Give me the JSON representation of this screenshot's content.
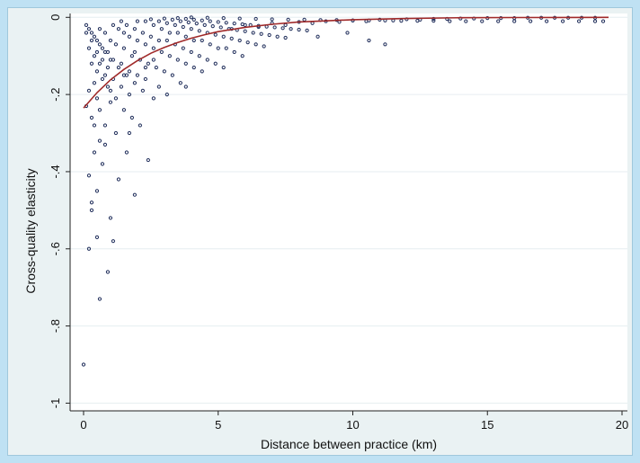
{
  "chart_data": {
    "type": "scatter",
    "title": "",
    "xlabel": "Distance between practice (km)",
    "ylabel": "Cross-quality elasticity",
    "xlim": [
      -0.5,
      20.2
    ],
    "ylim": [
      -1.02,
      0.01
    ],
    "x_ticks": [
      0,
      5,
      10,
      15,
      20
    ],
    "x_tick_labels": [
      "0",
      "5",
      "10",
      "15",
      "20"
    ],
    "y_ticks": [
      0,
      -0.2,
      -0.4,
      -0.6,
      -0.8,
      -1
    ],
    "y_tick_labels": [
      "0",
      "-.2",
      "-.4",
      "-.6",
      "-.8",
      "-1"
    ],
    "grid": "horizontal",
    "marker_color": "#1f2d5a",
    "fit_color": "#a02a2a",
    "series": [
      {
        "kind": "points",
        "x": [
          0.0,
          0.1,
          0.2,
          0.3,
          0.3,
          0.5,
          0.6,
          0.4,
          0.2,
          0.5,
          0.9,
          1.1,
          1.0,
          0.7,
          0.6,
          0.4,
          0.8,
          1.3,
          1.6,
          1.9,
          2.4,
          1.7,
          0.2,
          0.3,
          0.5,
          0.4,
          0.6,
          0.8,
          1.0,
          1.2,
          0.9,
          0.5,
          0.3,
          0.7,
          0.1,
          0.2,
          0.4,
          0.6,
          0.8,
          1.0,
          1.2,
          1.5,
          1.8,
          2.1,
          0.3,
          0.5,
          0.7,
          0.9,
          1.1,
          1.4,
          1.7,
          0.2,
          0.4,
          0.6,
          0.8,
          1.0,
          1.3,
          1.6,
          1.9,
          2.2,
          2.6,
          0.1,
          0.3,
          0.5,
          0.7,
          0.9,
          1.1,
          1.4,
          1.7,
          2.0,
          2.3,
          2.8,
          3.1,
          0.6,
          0.8,
          1.0,
          1.2,
          1.5,
          1.8,
          2.1,
          2.4,
          2.7,
          3.0,
          3.3,
          3.6,
          1.1,
          1.3,
          1.5,
          1.7,
          2.0,
          2.3,
          2.6,
          2.9,
          3.2,
          3.5,
          3.8,
          4.1,
          4.4,
          1.4,
          1.6,
          1.9,
          2.2,
          2.5,
          2.8,
          3.1,
          3.4,
          3.7,
          4.0,
          4.3,
          4.6,
          4.9,
          5.2,
          2.0,
          2.3,
          2.6,
          2.9,
          3.2,
          3.5,
          3.8,
          4.1,
          4.4,
          4.7,
          5.0,
          5.3,
          5.6,
          5.9,
          2.5,
          2.8,
          3.1,
          3.4,
          3.7,
          4.0,
          4.3,
          4.6,
          4.9,
          5.2,
          5.5,
          5.8,
          6.1,
          6.4,
          6.7,
          3.0,
          3.3,
          3.6,
          3.9,
          4.2,
          4.5,
          4.8,
          5.1,
          5.4,
          5.7,
          6.0,
          6.3,
          6.6,
          6.9,
          7.2,
          7.5,
          3.5,
          3.8,
          4.1,
          4.4,
          4.7,
          5.0,
          5.3,
          5.6,
          5.9,
          6.2,
          6.5,
          6.8,
          7.1,
          7.4,
          7.7,
          8.0,
          8.3,
          4.0,
          4.6,
          5.2,
          5.8,
          6.4,
          7.0,
          7.6,
          8.2,
          8.8,
          9.4,
          10.0,
          10.6,
          11.2,
          11.8,
          12.4,
          13.0,
          13.6,
          14.2,
          14.8,
          15.4,
          16.0,
          16.6,
          17.2,
          17.8,
          18.4,
          19.0,
          19.3,
          6.0,
          7.0,
          8.0,
          9.0,
          10.0,
          11.0,
          12.0,
          13.0,
          14.0,
          15.0,
          16.0,
          17.0,
          18.0,
          19.0,
          5.5,
          6.5,
          7.5,
          8.5,
          9.5,
          10.5,
          11.5,
          12.5,
          13.5,
          14.5,
          15.5,
          16.5,
          17.5,
          18.5,
          8.7,
          9.8,
          10.6,
          11.2,
          3.8,
          2.6,
          2.3,
          1.9,
          1.5
        ],
        "y": [
          -0.9,
          -0.23,
          -0.6,
          -0.5,
          -0.48,
          -0.57,
          -0.73,
          -0.35,
          -0.41,
          -0.45,
          -0.66,
          -0.58,
          -0.52,
          -0.38,
          -0.32,
          -0.28,
          -0.33,
          -0.42,
          -0.35,
          -0.46,
          -0.37,
          -0.3,
          -0.19,
          -0.26,
          -0.21,
          -0.17,
          -0.24,
          -0.28,
          -0.22,
          -0.3,
          -0.18,
          -0.14,
          -0.12,
          -0.16,
          -0.04,
          -0.08,
          -0.1,
          -0.12,
          -0.15,
          -0.19,
          -0.21,
          -0.24,
          -0.26,
          -0.28,
          -0.06,
          -0.09,
          -0.11,
          -0.13,
          -0.16,
          -0.18,
          -0.2,
          -0.03,
          -0.05,
          -0.07,
          -0.09,
          -0.11,
          -0.13,
          -0.15,
          -0.17,
          -0.19,
          -0.21,
          -0.02,
          -0.04,
          -0.06,
          -0.08,
          -0.09,
          -0.11,
          -0.12,
          -0.14,
          -0.15,
          -0.16,
          -0.18,
          -0.2,
          -0.03,
          -0.04,
          -0.06,
          -0.07,
          -0.08,
          -0.1,
          -0.11,
          -0.12,
          -0.13,
          -0.14,
          -0.15,
          -0.17,
          -0.02,
          -0.03,
          -0.04,
          -0.05,
          -0.06,
          -0.07,
          -0.08,
          -0.09,
          -0.1,
          -0.11,
          -0.12,
          -0.13,
          -0.14,
          -0.01,
          -0.02,
          -0.03,
          -0.04,
          -0.05,
          -0.06,
          -0.06,
          -0.07,
          -0.08,
          -0.09,
          -0.1,
          -0.11,
          -0.12,
          -0.13,
          -0.01,
          -0.01,
          -0.02,
          -0.03,
          -0.04,
          -0.04,
          -0.05,
          -0.06,
          -0.06,
          -0.07,
          -0.08,
          -0.08,
          -0.09,
          -0.1,
          -0.005,
          -0.01,
          -0.015,
          -0.02,
          -0.025,
          -0.03,
          -0.035,
          -0.04,
          -0.045,
          -0.05,
          -0.055,
          -0.06,
          -0.065,
          -0.07,
          -0.075,
          -0.003,
          -0.006,
          -0.01,
          -0.013,
          -0.016,
          -0.02,
          -0.023,
          -0.026,
          -0.03,
          -0.033,
          -0.036,
          -0.04,
          -0.043,
          -0.046,
          -0.05,
          -0.053,
          -0.002,
          -0.004,
          -0.006,
          -0.008,
          -0.01,
          -0.012,
          -0.014,
          -0.016,
          -0.018,
          -0.02,
          -0.022,
          -0.024,
          -0.026,
          -0.028,
          -0.03,
          -0.032,
          -0.034,
          0.0,
          -0.001,
          -0.002,
          -0.003,
          -0.004,
          -0.005,
          -0.006,
          -0.006,
          -0.007,
          -0.007,
          -0.008,
          -0.008,
          -0.008,
          -0.009,
          -0.009,
          -0.009,
          -0.01,
          -0.01,
          -0.01,
          -0.01,
          -0.01,
          -0.01,
          -0.01,
          -0.01,
          -0.01,
          -0.01,
          -0.01,
          -0.02,
          -0.015,
          -0.012,
          -0.01,
          -0.008,
          -0.006,
          -0.005,
          -0.004,
          -0.003,
          -0.002,
          -0.002,
          -0.001,
          -0.001,
          -0.001,
          -0.03,
          -0.025,
          -0.02,
          -0.015,
          -0.012,
          -0.01,
          -0.008,
          -0.006,
          -0.004,
          -0.003,
          -0.002,
          -0.001,
          -0.001,
          -0.001,
          -0.05,
          -0.04,
          -0.06,
          -0.07,
          -0.18,
          -0.11,
          -0.13,
          -0.09,
          -0.15
        ]
      },
      {
        "kind": "fit",
        "x": [
          0,
          0.5,
          1,
          1.5,
          2,
          2.5,
          3,
          3.5,
          4,
          4.5,
          5,
          6,
          7,
          8,
          9,
          10,
          12,
          14,
          16,
          18,
          19.5
        ],
        "y": [
          -0.235,
          -0.195,
          -0.162,
          -0.135,
          -0.112,
          -0.093,
          -0.078,
          -0.065,
          -0.054,
          -0.045,
          -0.037,
          -0.026,
          -0.018,
          -0.012,
          -0.009,
          -0.006,
          -0.003,
          -0.001,
          -0.0005,
          -0.0002,
          -0.0001
        ]
      }
    ]
  }
}
